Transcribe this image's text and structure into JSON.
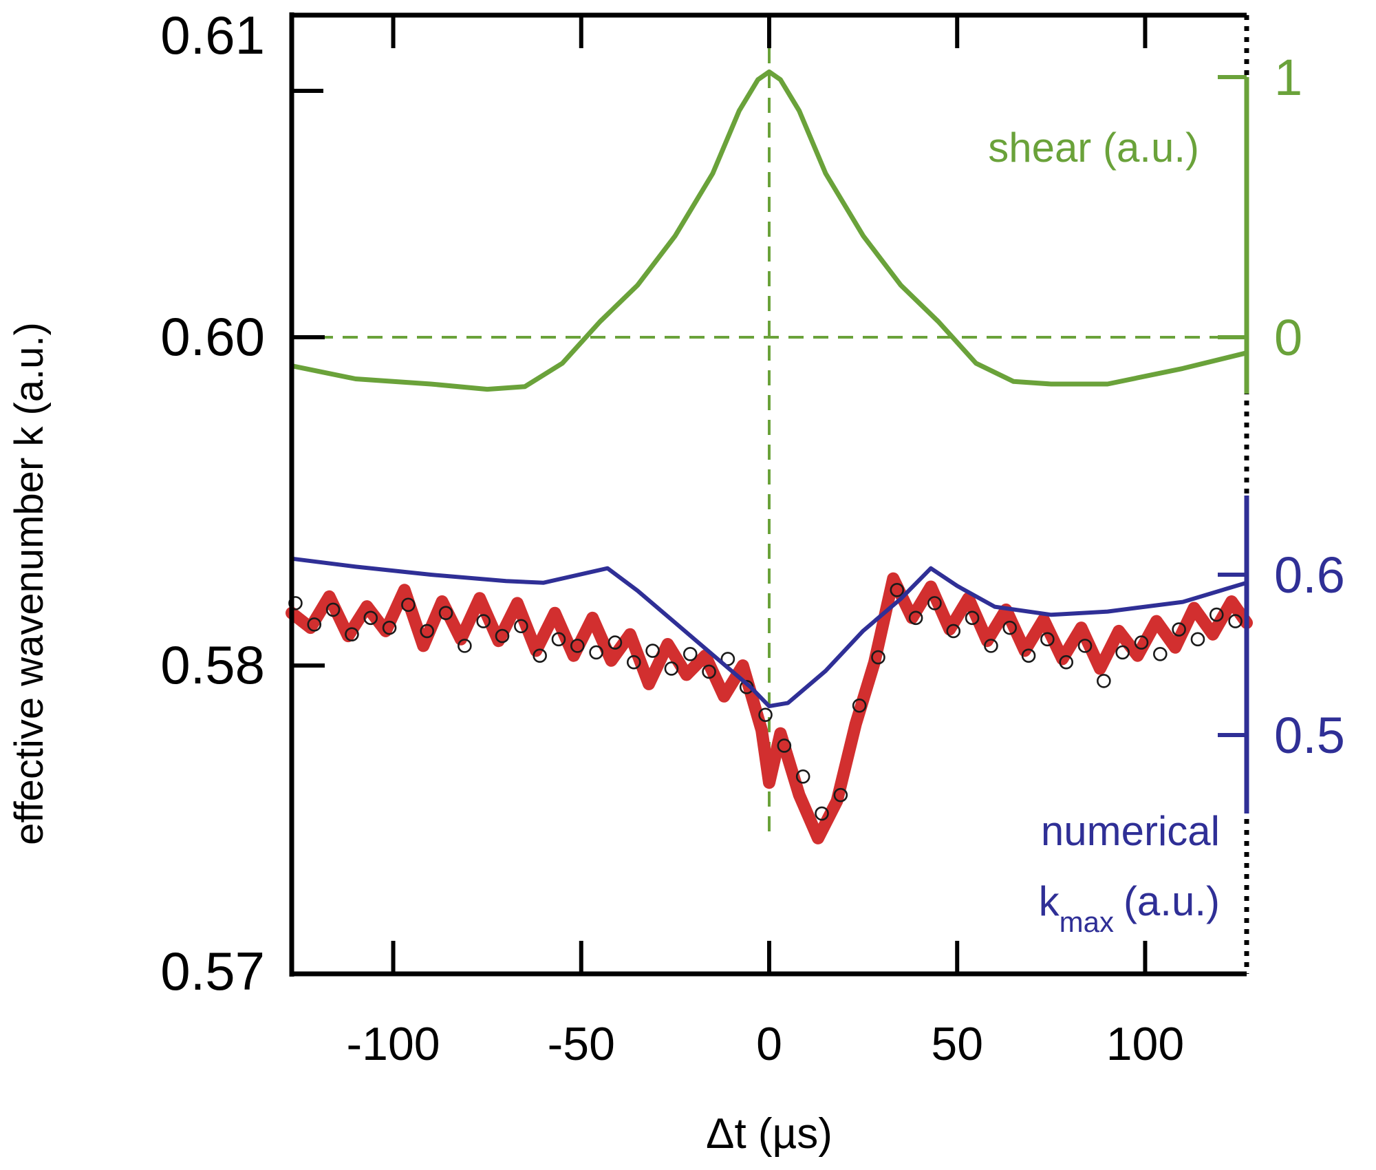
{
  "chart_data": {
    "type": "line",
    "title": "",
    "xlabel": "Δt (µs)",
    "ylabel": "effective wavenumber k (a.u.)",
    "xlim": [
      -127,
      127
    ],
    "ylim": [
      0.57,
      0.61
    ],
    "x_ticks": [
      -100,
      -50,
      0,
      50,
      100
    ],
    "x_tick_labels": [
      "-100",
      "-50",
      "0",
      "50",
      "100"
    ],
    "y_ticks": [
      0.57,
      0.58,
      0.6,
      0.61
    ],
    "y_tick_labels": [
      "0.57",
      "0.58",
      "0.60",
      "0.61"
    ],
    "y_break": "axis break between 0.58 and 0.60",
    "grid": false,
    "colors": {
      "shear": "#6aa23a",
      "measured": "#d22f2f",
      "numerical": "#2f2f96",
      "axis": "#000000"
    },
    "right_axes": [
      {
        "name": "shear",
        "label": "shear (a.u.)",
        "ticks": [
          0,
          1
        ],
        "tick_labels": [
          "0",
          "1"
        ],
        "color": "#6aa23a"
      },
      {
        "name": "numerical",
        "label_line1": "numerical",
        "label_k": "k",
        "label_sub": "max",
        "label_units": "(a.u.)",
        "ticks": [
          0.5,
          0.6
        ],
        "tick_labels": [
          "0.5",
          "0.6"
        ],
        "color": "#2f2f96"
      }
    ],
    "reference_lines": [
      {
        "orientation": "vertical",
        "x": 0,
        "style": "dashed",
        "color": "#6aa23a"
      },
      {
        "orientation": "horizontal",
        "y": 0,
        "axis": "shear",
        "style": "dashed",
        "color": "#6aa23a"
      }
    ],
    "series": [
      {
        "name": "shear",
        "axis": "shear",
        "style": "line",
        "x": [
          -127,
          -110,
          -90,
          -75,
          -65,
          -55,
          -45,
          -35,
          -25,
          -15,
          -8,
          -3,
          0,
          3,
          8,
          15,
          25,
          35,
          45,
          55,
          65,
          75,
          90,
          110,
          127
        ],
        "y": [
          -0.11,
          -0.16,
          -0.18,
          -0.2,
          -0.19,
          -0.1,
          0.06,
          0.2,
          0.39,
          0.63,
          0.87,
          0.99,
          1.02,
          0.99,
          0.87,
          0.63,
          0.39,
          0.2,
          0.06,
          -0.1,
          -0.17,
          -0.18,
          -0.18,
          -0.12,
          -0.06
        ]
      },
      {
        "name": "numerical k_max",
        "axis": "numerical",
        "style": "line",
        "x": [
          -127,
          -110,
          -90,
          -70,
          -60,
          -43,
          -35,
          -25,
          -15,
          -5,
          0,
          5,
          15,
          25,
          35,
          43,
          50,
          60,
          75,
          90,
          110,
          127
        ],
        "y": [
          0.61,
          0.605,
          0.6,
          0.596,
          0.595,
          0.604,
          0.59,
          0.57,
          0.55,
          0.53,
          0.518,
          0.52,
          0.54,
          0.565,
          0.585,
          0.604,
          0.593,
          0.58,
          0.575,
          0.577,
          0.583,
          0.595
        ]
      },
      {
        "name": "measured k (band)",
        "axis": "left",
        "style": "thick-line",
        "x": [
          -127,
          -122,
          -117,
          -112,
          -107,
          -102,
          -97,
          -92,
          -87,
          -82,
          -77,
          -72,
          -67,
          -62,
          -57,
          -52,
          -47,
          -42,
          -37,
          -32,
          -27,
          -22,
          -17,
          -12,
          -7,
          -2,
          0,
          3,
          8,
          13,
          18,
          23,
          28,
          33,
          38,
          43,
          48,
          53,
          58,
          63,
          68,
          73,
          78,
          83,
          88,
          93,
          98,
          103,
          108,
          113,
          118,
          123,
          127
        ],
        "y": [
          0.5832,
          0.5823,
          0.5842,
          0.5818,
          0.5836,
          0.5821,
          0.5846,
          0.5812,
          0.5839,
          0.5816,
          0.5841,
          0.5815,
          0.5838,
          0.5809,
          0.5832,
          0.5806,
          0.5829,
          0.5803,
          0.5819,
          0.5794,
          0.5813,
          0.5797,
          0.5806,
          0.579,
          0.58,
          0.5779,
          0.5762,
          0.5778,
          0.5758,
          0.5744,
          0.5756,
          0.5781,
          0.5802,
          0.5853,
          0.5829,
          0.5848,
          0.5822,
          0.5841,
          0.5815,
          0.5834,
          0.5809,
          0.5828,
          0.5804,
          0.5823,
          0.5799,
          0.5821,
          0.5806,
          0.5827,
          0.5811,
          0.5835,
          0.5819,
          0.5839,
          0.5826
        ]
      },
      {
        "name": "measured k (points)",
        "axis": "left",
        "style": "open-circles",
        "x": [
          -126,
          -121,
          -116,
          -111,
          -106,
          -101,
          -96,
          -91,
          -86,
          -81,
          -76,
          -71,
          -66,
          -61,
          -56,
          -51,
          -46,
          -41,
          -36,
          -31,
          -26,
          -21,
          -16,
          -11,
          -6,
          -1,
          4,
          9,
          14,
          19,
          24,
          29,
          34,
          39,
          44,
          49,
          54,
          59,
          64,
          69,
          74,
          79,
          84,
          89,
          94,
          99,
          104,
          109,
          114,
          119,
          124
        ],
        "y": [
          0.5838,
          0.5825,
          0.5834,
          0.5819,
          0.5829,
          0.5823,
          0.5837,
          0.5821,
          0.5832,
          0.5812,
          0.5827,
          0.5818,
          0.5824,
          0.5806,
          0.5816,
          0.5812,
          0.5808,
          0.5814,
          0.5802,
          0.5809,
          0.5799,
          0.5807,
          0.5798,
          0.5804,
          0.5793,
          0.5784,
          0.5774,
          0.5764,
          0.5752,
          0.5758,
          0.5787,
          0.5805,
          0.5846,
          0.5829,
          0.5838,
          0.5821,
          0.5829,
          0.5812,
          0.5823,
          0.5806,
          0.5816,
          0.5802,
          0.5812,
          0.5795,
          0.5808,
          0.5814,
          0.5807,
          0.5822,
          0.5816,
          0.5831,
          0.5827
        ]
      }
    ]
  }
}
